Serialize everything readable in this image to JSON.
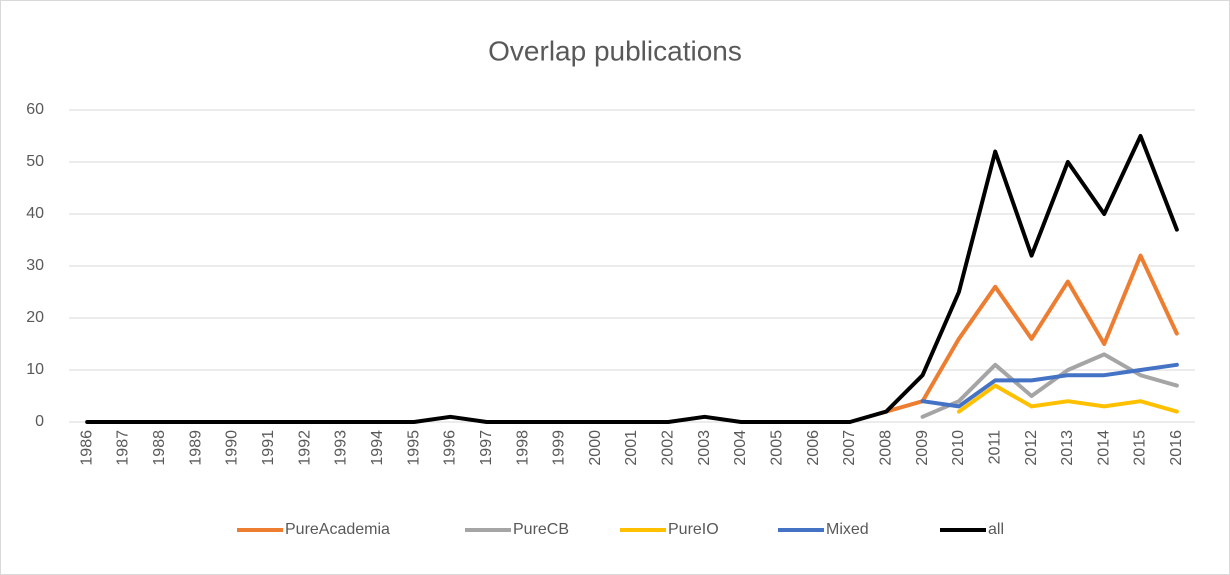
{
  "chart_data": {
    "type": "line",
    "title": "Overlap publications",
    "categories": [
      "1986",
      "1987",
      "1988",
      "1989",
      "1990",
      "1991",
      "1992",
      "1993",
      "1994",
      "1995",
      "1996",
      "1997",
      "1998",
      "1999",
      "2000",
      "2001",
      "2002",
      "2003",
      "2004",
      "2005",
      "2006",
      "2007",
      "2008",
      "2009",
      "2010",
      "2011",
      "2012",
      "2013",
      "2014",
      "2015",
      "2016"
    ],
    "series": [
      {
        "name": "PureAcademia",
        "color": "#ed7d31",
        "values": [
          null,
          null,
          null,
          null,
          null,
          null,
          null,
          null,
          null,
          null,
          null,
          null,
          null,
          null,
          null,
          null,
          null,
          null,
          null,
          null,
          null,
          null,
          2,
          4,
          16,
          26,
          16,
          27,
          15,
          32,
          17
        ]
      },
      {
        "name": "PureCB",
        "color": "#a5a5a5",
        "values": [
          null,
          null,
          null,
          null,
          null,
          null,
          null,
          null,
          null,
          null,
          null,
          null,
          null,
          null,
          null,
          null,
          null,
          null,
          null,
          null,
          null,
          null,
          null,
          1,
          4,
          11,
          5,
          10,
          13,
          9,
          7
        ]
      },
      {
        "name": "PureIO",
        "color": "#ffc000",
        "values": [
          null,
          null,
          null,
          null,
          null,
          null,
          null,
          null,
          null,
          null,
          null,
          null,
          null,
          null,
          null,
          null,
          null,
          null,
          null,
          null,
          null,
          null,
          null,
          null,
          2,
          7,
          3,
          4,
          3,
          4,
          2
        ]
      },
      {
        "name": "Mixed",
        "color": "#4472c4",
        "values": [
          null,
          null,
          null,
          null,
          null,
          null,
          null,
          null,
          null,
          null,
          null,
          null,
          null,
          null,
          null,
          null,
          null,
          null,
          null,
          null,
          null,
          null,
          null,
          4,
          3,
          8,
          8,
          9,
          9,
          10,
          11
        ]
      },
      {
        "name": "all",
        "color": "#000000",
        "values": [
          0,
          0,
          0,
          0,
          0,
          0,
          0,
          0,
          0,
          0,
          1,
          0,
          0,
          0,
          0,
          0,
          0,
          1,
          0,
          0,
          0,
          0,
          2,
          9,
          25,
          52,
          32,
          50,
          40,
          55,
          37
        ]
      }
    ],
    "ylim": [
      0,
      60
    ],
    "yticks": [
      0,
      10,
      20,
      30,
      40,
      50,
      60
    ],
    "grid": true,
    "legend": "bottom"
  }
}
